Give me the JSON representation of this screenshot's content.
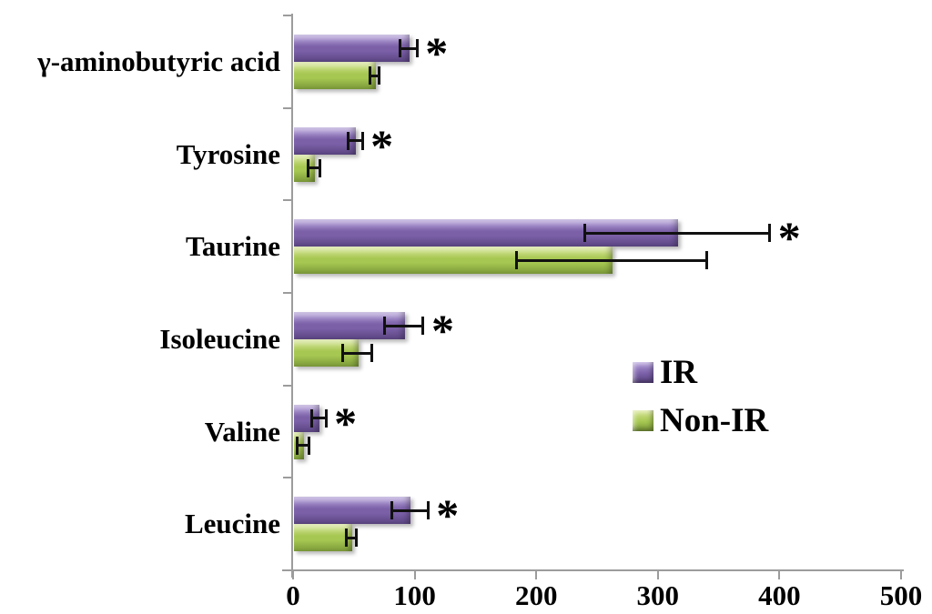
{
  "chart_data": {
    "type": "bar",
    "orientation": "horizontal",
    "title": "",
    "xlabel": "",
    "ylabel": "",
    "categories": [
      "γ-aminobutyric acid",
      "Tyrosine",
      "Taurine",
      "Isoleucine",
      "Valine",
      "Leucine"
    ],
    "series": [
      {
        "name": "IR",
        "values": [
          95,
          51,
          316,
          91,
          21,
          96
        ],
        "errors": [
          7,
          6,
          76,
          16,
          6,
          15
        ],
        "significant": [
          true,
          true,
          true,
          true,
          true,
          true
        ],
        "color_light": "#b09ad8",
        "color_mid": "#7b60a8",
        "color_dark": "#5a4480"
      },
      {
        "name": "Non-IR",
        "values": [
          67,
          17,
          262,
          53,
          8,
          48
        ],
        "errors": [
          4,
          5,
          78,
          12,
          5,
          4
        ],
        "significant": [
          false,
          false,
          false,
          false,
          false,
          false
        ],
        "color_light": "#d5e48e",
        "color_mid": "#a6c751",
        "color_dark": "#7a9838"
      }
    ],
    "x_ticks": [
      0,
      100,
      200,
      300,
      400,
      500
    ],
    "xlim": [
      0,
      500
    ],
    "grid": false,
    "significance_marker": "*",
    "legend": {
      "position": "middle-right",
      "entries": [
        "IR",
        "Non-IR"
      ]
    },
    "axis_color": "#9c9c9c",
    "error_bar_color": "#111111"
  }
}
